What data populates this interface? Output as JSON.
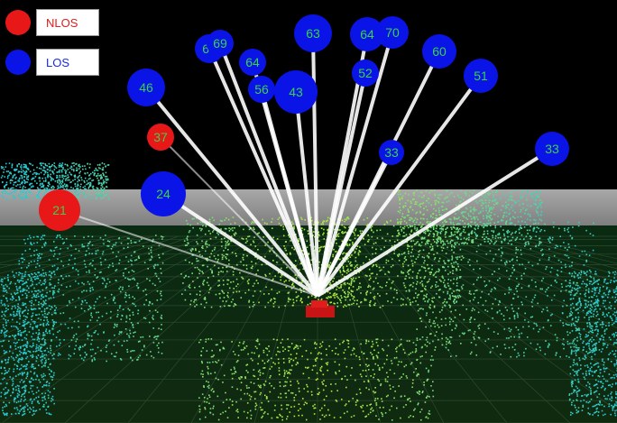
{
  "legend": {
    "nlos": {
      "label": "NLOS",
      "color": "#e81818"
    },
    "los": {
      "label": "LOS",
      "color": "#0a14e6"
    }
  },
  "colors": {
    "ray": "#ffffff",
    "horizon_plane": "#9b9b9b",
    "receiver": "#cc1010",
    "label_text": "#39d24a",
    "point_cloud_near": "#c8f028",
    "point_cloud_far": "#22c8d8"
  },
  "satellites": [
    {
      "id": "63",
      "status": "LOS"
    },
    {
      "id": "64",
      "status": "LOS"
    },
    {
      "id": "70",
      "status": "LOS"
    },
    {
      "id": "60",
      "status": "LOS"
    },
    {
      "id": "51",
      "status": "LOS"
    },
    {
      "id": "66",
      "status": "LOS"
    },
    {
      "id": "69",
      "status": "LOS"
    },
    {
      "id": "64",
      "status": "LOS"
    },
    {
      "id": "46",
      "status": "LOS"
    },
    {
      "id": "43",
      "status": "LOS"
    },
    {
      "id": "56",
      "status": "LOS"
    },
    {
      "id": "52",
      "status": "LOS"
    },
    {
      "id": "37",
      "status": "NLOS"
    },
    {
      "id": "33",
      "status": "LOS"
    },
    {
      "id": "33",
      "status": "LOS"
    },
    {
      "id": "24",
      "status": "LOS"
    },
    {
      "id": "21",
      "status": "NLOS"
    }
  ]
}
